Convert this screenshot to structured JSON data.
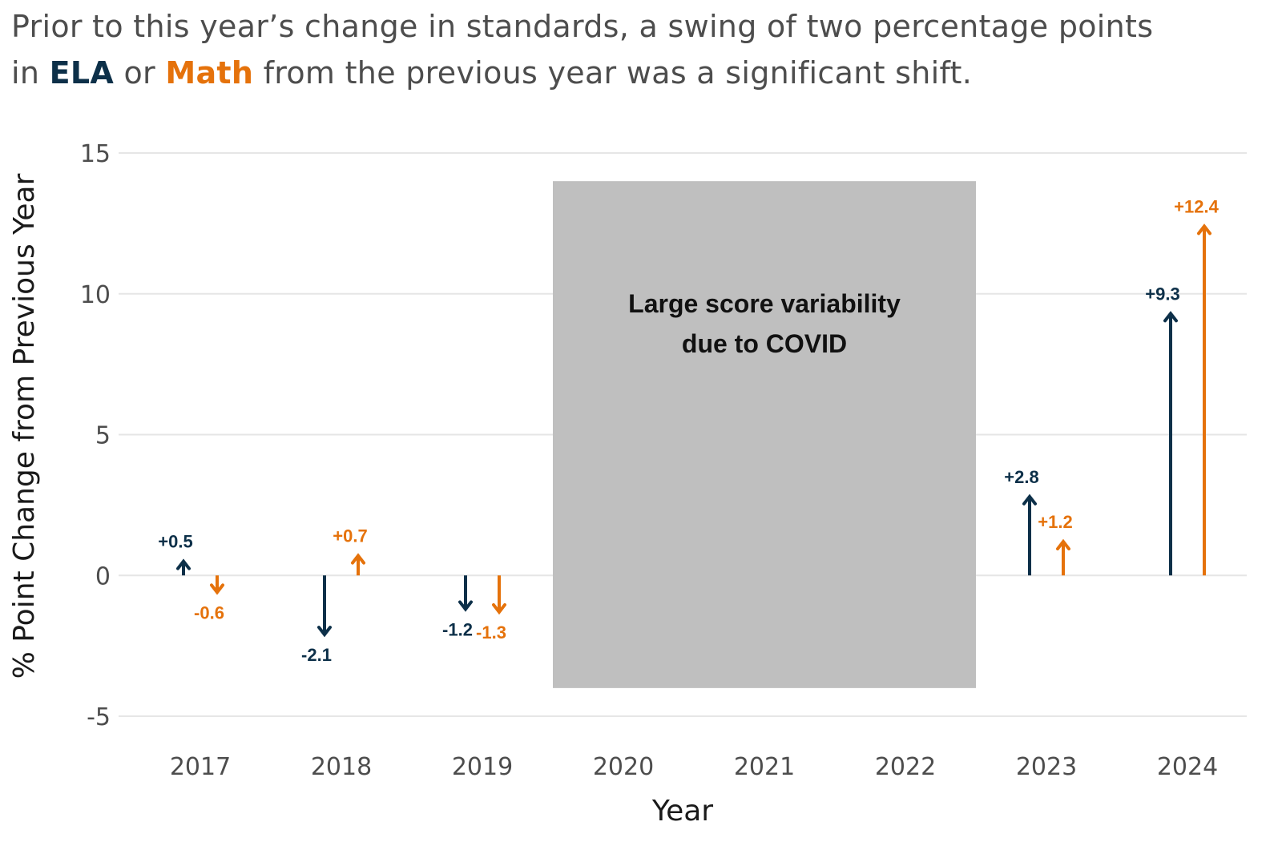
{
  "subtitle": {
    "line1": "Prior to this year’s change in standards, a swing of two percentage points",
    "line2_pre": "in ",
    "ela_word": "ELA",
    "line2_mid": " or ",
    "math_word": "Math",
    "line2_post": " from the previous year was a significant shift."
  },
  "chart_data": {
    "type": "arrow",
    "x": [
      "2017",
      "2018",
      "2019",
      "2020",
      "2021",
      "2022",
      "2023",
      "2024"
    ],
    "xlabel": "Year",
    "ylabel": "% Point Change from Previous Year",
    "ylim": [
      -5,
      15
    ],
    "yticks": [
      15,
      10,
      5,
      0,
      -5
    ],
    "grid": "horizontal",
    "series": [
      {
        "name": "ELA",
        "color": "#0d3049",
        "points": [
          {
            "x": "2017",
            "y": 0.5,
            "label": "+0.5"
          },
          {
            "x": "2018",
            "y": -2.1,
            "label": "-2.1"
          },
          {
            "x": "2019",
            "y": -1.2,
            "label": "-1.2"
          },
          {
            "x": "2023",
            "y": 2.8,
            "label": "+2.8"
          },
          {
            "x": "2024",
            "y": 9.3,
            "label": "+9.3"
          }
        ]
      },
      {
        "name": "Math",
        "color": "#e5720b",
        "points": [
          {
            "x": "2017",
            "y": -0.6,
            "label": "-0.6"
          },
          {
            "x": "2018",
            "y": 0.7,
            "label": "+0.7"
          },
          {
            "x": "2019",
            "y": -1.3,
            "label": "-1.3"
          },
          {
            "x": "2023",
            "y": 1.2,
            "label": "+1.2"
          },
          {
            "x": "2024",
            "y": 12.4,
            "label": "+12.4"
          }
        ]
      }
    ],
    "annotation": {
      "text_line1": "Large score variability",
      "text_line2": "due to COVID",
      "x_start": "2020",
      "x_end": "2022",
      "y_range": [
        -4,
        14
      ],
      "color": "#bfbfbf"
    }
  }
}
